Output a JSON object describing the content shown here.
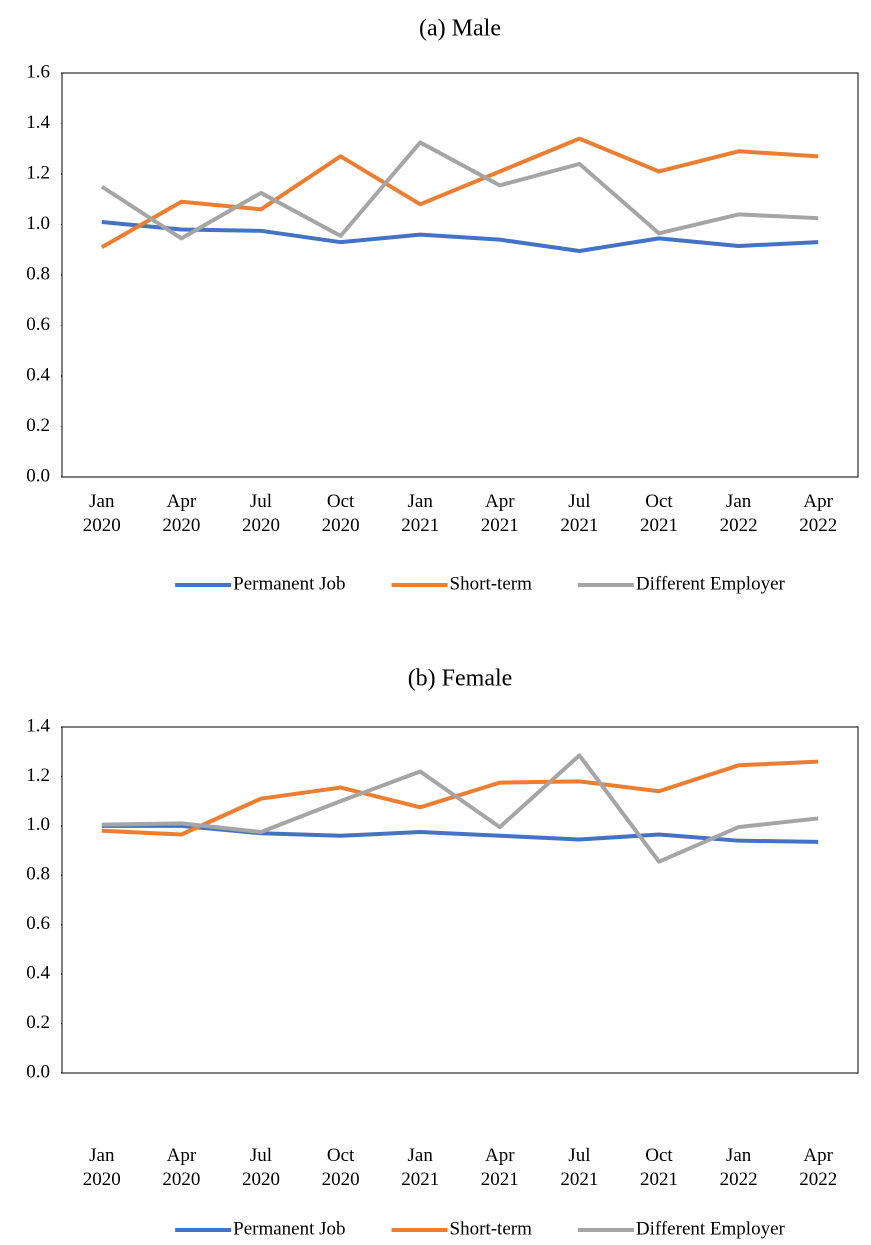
{
  "chart_data": [
    {
      "type": "line",
      "title": "(a) Male",
      "categories": [
        "Jan 2020",
        "Apr 2020",
        "Jul 2020",
        "Oct 2020",
        "Jan 2021",
        "Apr 2021",
        "Jul 2021",
        "Oct 2021",
        "Jan 2022",
        "Apr 2022"
      ],
      "series": [
        {
          "name": "Permanent Job",
          "color": "#4472c4",
          "values": [
            1.01,
            0.98,
            0.975,
            0.93,
            0.96,
            0.94,
            0.895,
            0.945,
            0.915,
            0.93
          ]
        },
        {
          "name": "Short-term",
          "color": "#ed7d31",
          "values": [
            0.91,
            1.09,
            1.06,
            1.27,
            1.08,
            1.21,
            1.34,
            1.21,
            1.29,
            1.27
          ]
        },
        {
          "name": "Different Employer",
          "color": "#a5a5a5",
          "values": [
            1.15,
            0.945,
            1.125,
            0.955,
            1.325,
            1.155,
            1.24,
            0.965,
            1.04,
            1.025
          ]
        }
      ],
      "ylim": [
        0,
        1.6
      ],
      "yticks": [
        {
          "value": 0,
          "label": "0.0"
        },
        0.2,
        0.4,
        0.6,
        0.8,
        {
          "value": 1,
          "label": "1.0"
        },
        1.2,
        1.4,
        1.6
      ],
      "legend": "bottom"
    },
    {
      "type": "line",
      "title": "(b) Female",
      "categories": [
        "Jan 2020",
        "Apr 2020",
        "Jul 2020",
        "Oct 2020",
        "Jan 2021",
        "Apr 2021",
        "Jul 2021",
        "Oct 2021",
        "Jan 2022",
        "Apr 2022"
      ],
      "series": [
        {
          "name": "Permanent Job",
          "color": "#4472c4",
          "values": [
            1.0,
            1.0,
            0.97,
            0.96,
            0.975,
            0.96,
            0.945,
            0.965,
            0.94,
            0.935
          ]
        },
        {
          "name": "Short-term",
          "color": "#ed7d31",
          "values": [
            0.98,
            0.965,
            1.11,
            1.155,
            1.075,
            1.175,
            1.18,
            1.14,
            1.245,
            1.26
          ]
        },
        {
          "name": "Different Employer",
          "color": "#a5a5a5",
          "values": [
            1.005,
            1.01,
            0.975,
            1.1,
            1.22,
            0.995,
            1.285,
            0.855,
            0.995,
            1.03
          ]
        }
      ],
      "ylim": [
        0,
        1.4
      ],
      "yticks": [
        {
          "value": 0,
          "label": "0.0"
        },
        0.2,
        0.4,
        0.6,
        0.8,
        {
          "value": 1,
          "label": "1.0"
        },
        1.2,
        1.4
      ],
      "legend": "bottom"
    }
  ]
}
